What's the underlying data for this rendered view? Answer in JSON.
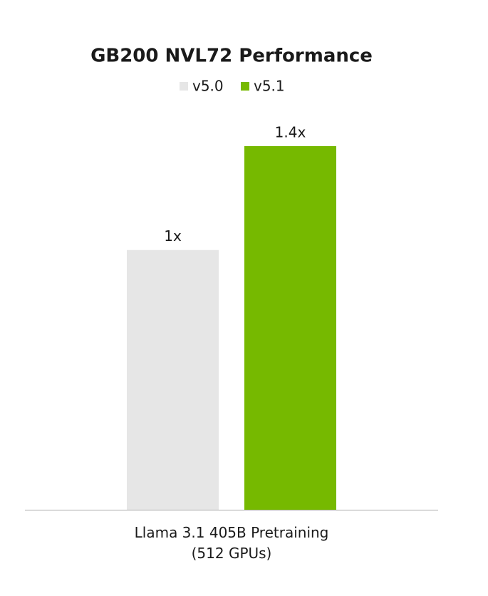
{
  "chart_data": {
    "type": "bar",
    "title": "GB200 NVL72 Performance",
    "categories": [
      "Llama 3.1 405B Pretraining\n(512 GPUs)"
    ],
    "series": [
      {
        "name": "v5.0",
        "color": "#e6e6e6",
        "values": [
          1
        ],
        "value_labels": [
          "1x"
        ]
      },
      {
        "name": "v5.1",
        "color": "#76b900",
        "values": [
          1.4
        ],
        "value_labels": [
          "1.4x"
        ]
      }
    ]
  }
}
